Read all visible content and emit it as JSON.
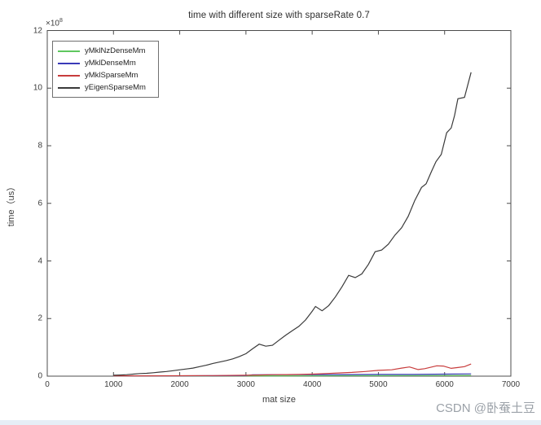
{
  "watermark": {
    "text": "CSDN @卧蚕土豆",
    "color": "#9ba1a8"
  },
  "footer_strip": {
    "color": "#e6eef6"
  },
  "chart_data": {
    "type": "line",
    "title": "time with different size with sparseRate 0.7",
    "xlabel": "mat size",
    "ylabel": "time（us）",
    "y_exponent_base": "×10",
    "y_exponent_power": "8",
    "y_unit_scale": "1e8",
    "xlim": [
      0,
      7000
    ],
    "ylim": [
      0,
      12
    ],
    "grid": false,
    "box": true,
    "tick_direction": "in",
    "axis_color": "#4c4c4c",
    "x_ticks": [
      0,
      1000,
      2000,
      3000,
      4000,
      5000,
      6000,
      7000
    ],
    "y_ticks": [
      0,
      2,
      4,
      6,
      8,
      10,
      12
    ],
    "legend_position": "top-left",
    "series": [
      {
        "name": "yMklNzDenseMm",
        "color": "#5fc75f",
        "points": [
          [
            1000,
            0.005
          ],
          [
            1500,
            0.006
          ],
          [
            2000,
            0.007
          ],
          [
            2500,
            0.008
          ],
          [
            3000,
            0.01
          ],
          [
            3500,
            0.012
          ],
          [
            4000,
            0.014
          ],
          [
            4500,
            0.016
          ],
          [
            5000,
            0.018
          ],
          [
            5500,
            0.02
          ],
          [
            6000,
            0.022
          ],
          [
            6400,
            0.025
          ]
        ]
      },
      {
        "name": "yMklDenseMm",
        "color": "#3a3ab8",
        "points": [
          [
            1000,
            0.008
          ],
          [
            1500,
            0.01
          ],
          [
            2000,
            0.012
          ],
          [
            2500,
            0.015
          ],
          [
            3000,
            0.02
          ],
          [
            3100,
            0.045
          ],
          [
            3500,
            0.05
          ],
          [
            4000,
            0.05
          ],
          [
            4500,
            0.055
          ],
          [
            5000,
            0.06
          ],
          [
            5500,
            0.06
          ],
          [
            6000,
            0.07
          ],
          [
            6400,
            0.08
          ]
        ]
      },
      {
        "name": "yMklSparseMm",
        "color": "#c83c3c",
        "points": [
          [
            1000,
            0.01
          ],
          [
            1500,
            0.012
          ],
          [
            2000,
            0.015
          ],
          [
            2500,
            0.02
          ],
          [
            3000,
            0.03
          ],
          [
            3200,
            0.04
          ],
          [
            3400,
            0.05
          ],
          [
            3600,
            0.055
          ],
          [
            3800,
            0.06
          ],
          [
            4000,
            0.07
          ],
          [
            4200,
            0.09
          ],
          [
            4400,
            0.11
          ],
          [
            4600,
            0.13
          ],
          [
            4800,
            0.16
          ],
          [
            5000,
            0.2
          ],
          [
            5200,
            0.22
          ],
          [
            5350,
            0.28
          ],
          [
            5470,
            0.32
          ],
          [
            5600,
            0.23
          ],
          [
            5700,
            0.26
          ],
          [
            5880,
            0.36
          ],
          [
            5980,
            0.35
          ],
          [
            6100,
            0.27
          ],
          [
            6200,
            0.3
          ],
          [
            6300,
            0.33
          ],
          [
            6400,
            0.42
          ]
        ]
      },
      {
        "name": "yEigenSparseMm",
        "color": "#3a3a3a",
        "points": [
          [
            1000,
            0.03
          ],
          [
            1100,
            0.04
          ],
          [
            1200,
            0.05
          ],
          [
            1300,
            0.07
          ],
          [
            1400,
            0.09
          ],
          [
            1500,
            0.1
          ],
          [
            1600,
            0.12
          ],
          [
            1700,
            0.14
          ],
          [
            1800,
            0.16
          ],
          [
            1900,
            0.19
          ],
          [
            2000,
            0.22
          ],
          [
            2100,
            0.25
          ],
          [
            2200,
            0.28
          ],
          [
            2300,
            0.33
          ],
          [
            2400,
            0.38
          ],
          [
            2500,
            0.44
          ],
          [
            2600,
            0.49
          ],
          [
            2700,
            0.54
          ],
          [
            2800,
            0.6
          ],
          [
            2900,
            0.68
          ],
          [
            3000,
            0.78
          ],
          [
            3100,
            0.95
          ],
          [
            3200,
            1.11
          ],
          [
            3300,
            1.04
          ],
          [
            3400,
            1.07
          ],
          [
            3500,
            1.25
          ],
          [
            3600,
            1.42
          ],
          [
            3700,
            1.58
          ],
          [
            3800,
            1.73
          ],
          [
            3900,
            1.95
          ],
          [
            4000,
            2.25
          ],
          [
            4050,
            2.42
          ],
          [
            4150,
            2.27
          ],
          [
            4250,
            2.45
          ],
          [
            4350,
            2.75
          ],
          [
            4450,
            3.1
          ],
          [
            4550,
            3.5
          ],
          [
            4650,
            3.42
          ],
          [
            4750,
            3.55
          ],
          [
            4850,
            3.88
          ],
          [
            4950,
            4.32
          ],
          [
            5050,
            4.38
          ],
          [
            5150,
            4.58
          ],
          [
            5250,
            4.9
          ],
          [
            5350,
            5.15
          ],
          [
            5450,
            5.55
          ],
          [
            5550,
            6.1
          ],
          [
            5650,
            6.55
          ],
          [
            5720,
            6.68
          ],
          [
            5800,
            7.1
          ],
          [
            5870,
            7.45
          ],
          [
            5950,
            7.7
          ],
          [
            6030,
            8.45
          ],
          [
            6100,
            8.62
          ],
          [
            6150,
            9.05
          ],
          [
            6200,
            9.63
          ],
          [
            6300,
            9.68
          ],
          [
            6400,
            10.55
          ]
        ]
      }
    ]
  }
}
